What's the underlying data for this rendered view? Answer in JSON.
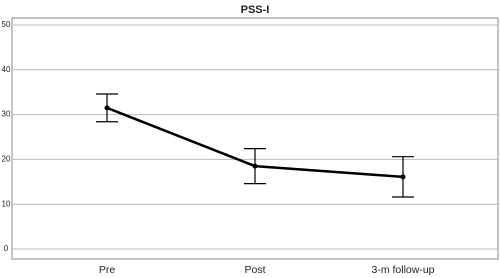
{
  "chart_data": {
    "type": "line",
    "title": "PSS-I",
    "categories": [
      "Pre",
      "Post",
      "3-m follow-up"
    ],
    "values": [
      31.5,
      18.5,
      16.1
    ],
    "errors": [
      3.1,
      3.9,
      4.5
    ],
    "color": "#000000",
    "ylim": [
      0,
      50
    ],
    "yticks": [
      0,
      10,
      20,
      30,
      40,
      50
    ],
    "grid": true
  }
}
